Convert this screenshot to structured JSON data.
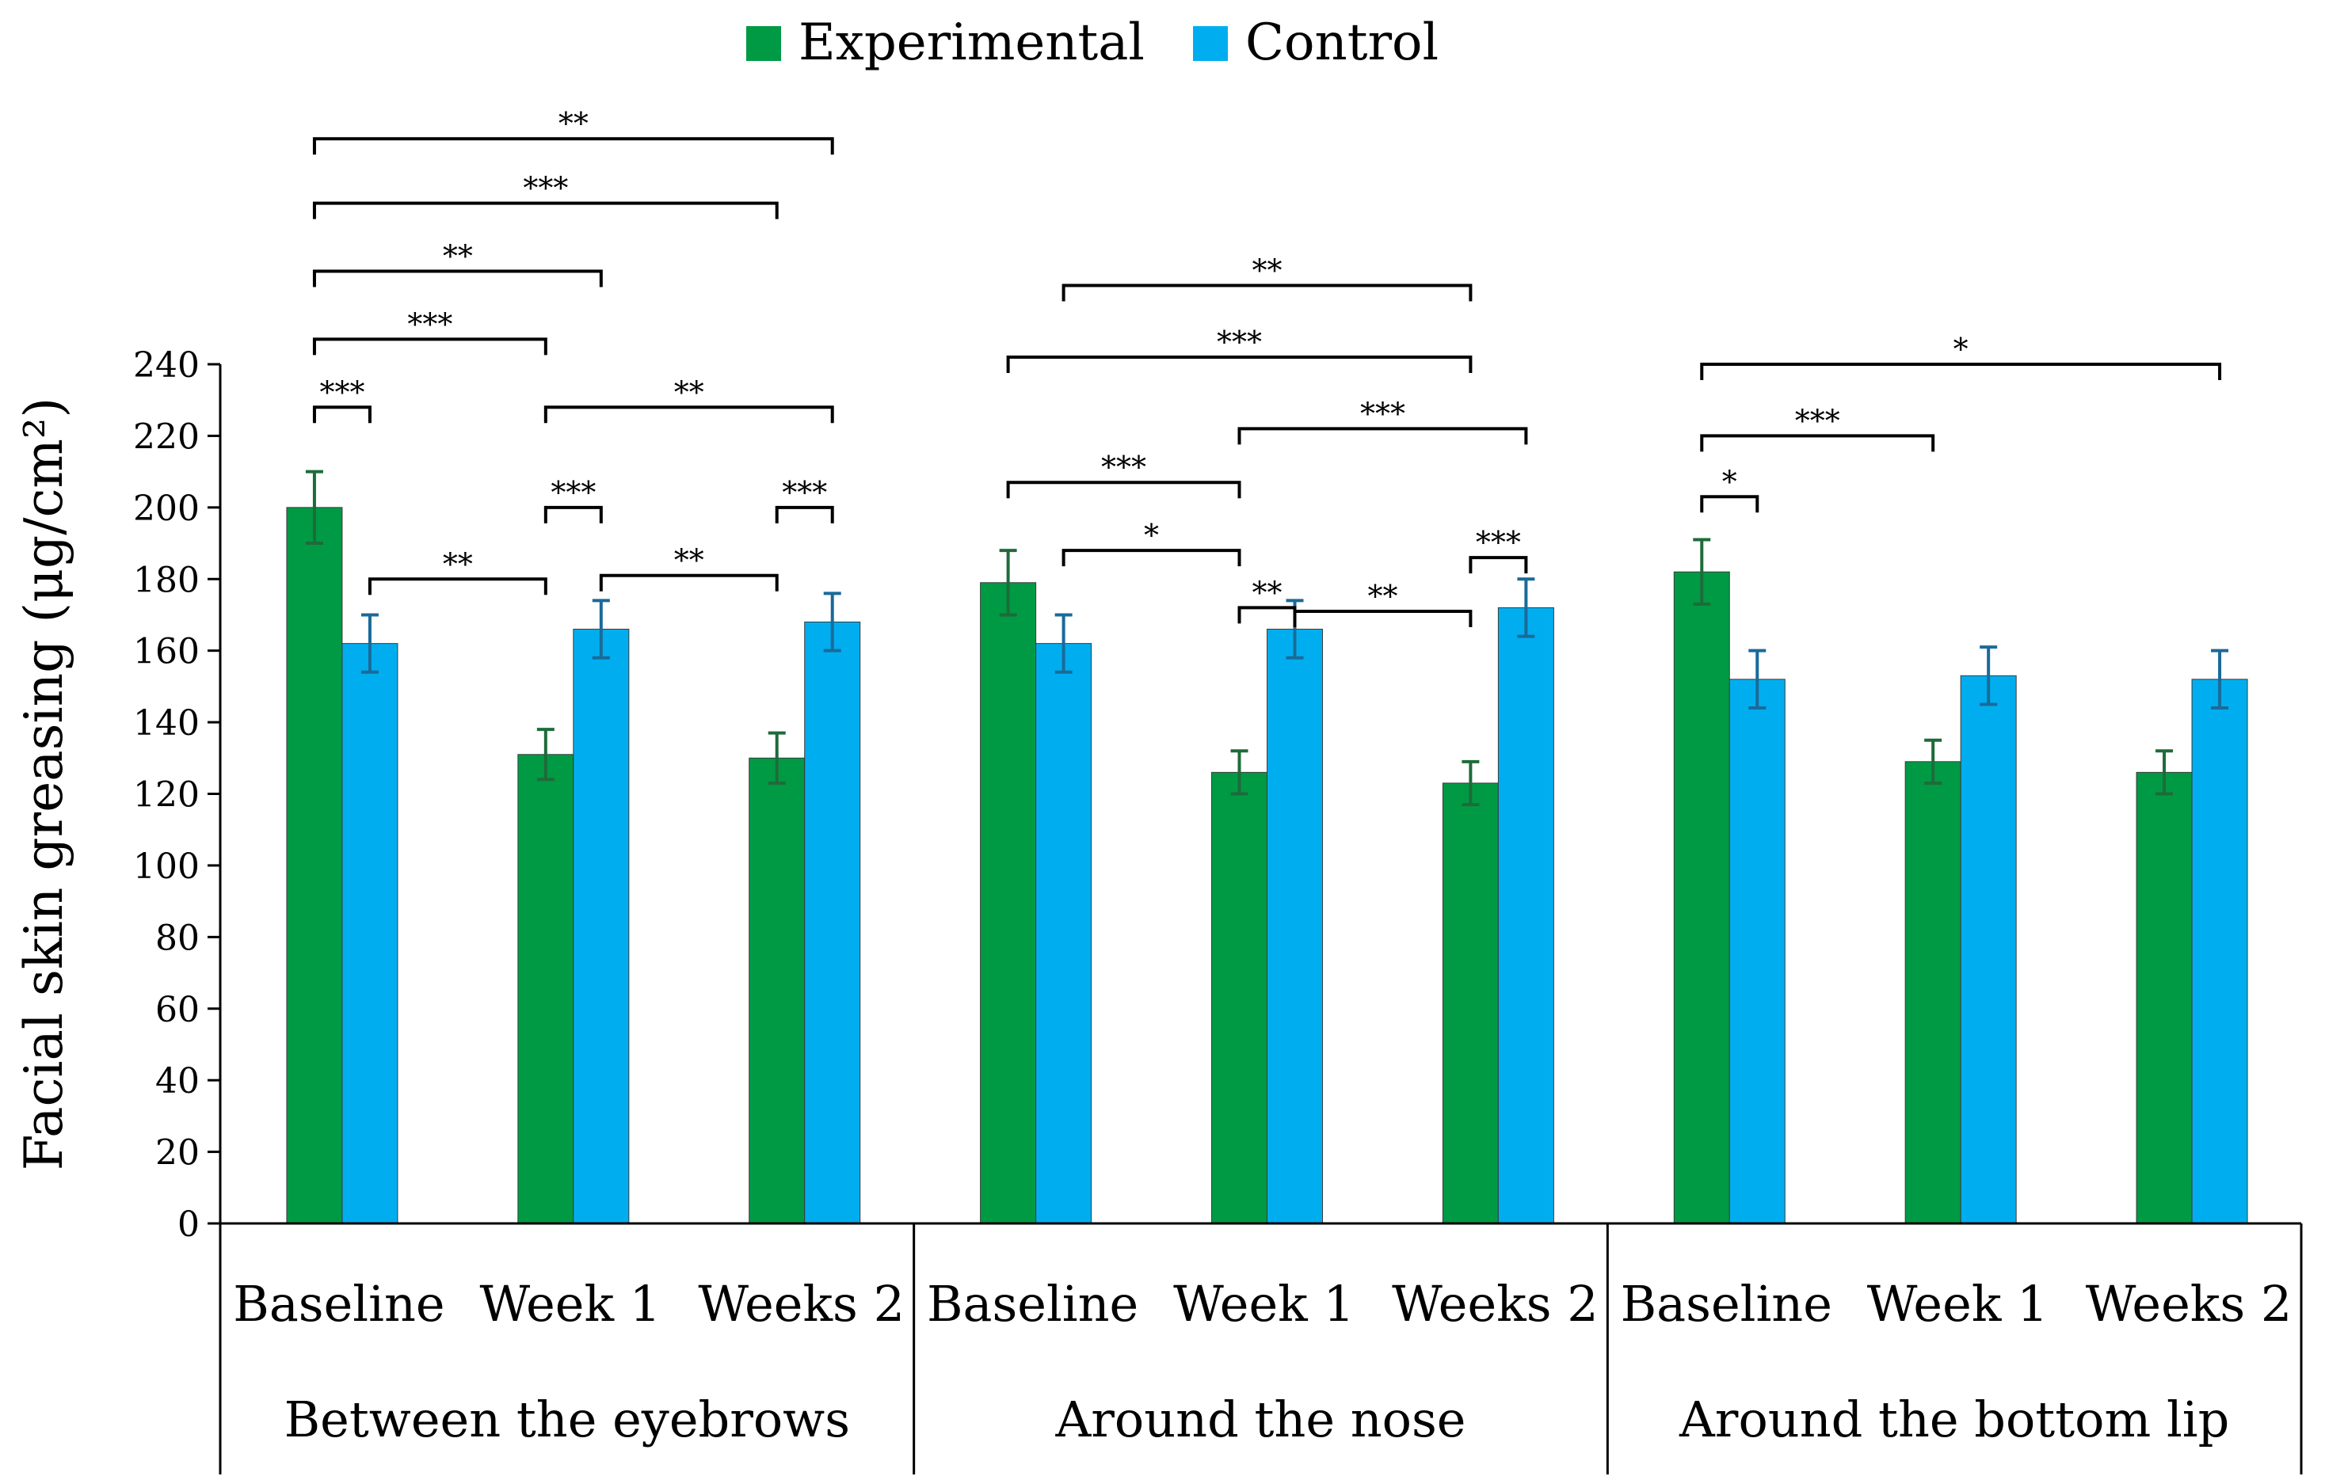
{
  "chart_data": {
    "type": "bar",
    "ylabel": "Facial skin greasing (μg/cm²)",
    "ylim": [
      0,
      240
    ],
    "ytick_step": 20,
    "groups": [
      {
        "name": "Between the eyebrows",
        "categories": [
          "Baseline",
          "Week 1",
          "Weeks 2"
        ]
      },
      {
        "name": "Around the nose",
        "categories": [
          "Baseline",
          "Week 1",
          "Weeks 2"
        ]
      },
      {
        "name": "Around the bottom lip",
        "categories": [
          "Baseline",
          "Week 1",
          "Weeks 2"
        ]
      }
    ],
    "series": [
      {
        "name": "Experimental",
        "color": "#009a44",
        "error_color": "#1e6b3a",
        "values": [
          200,
          131,
          130,
          179,
          126,
          123,
          182,
          129,
          126
        ],
        "errors": [
          10,
          7,
          7,
          9,
          6,
          6,
          9,
          6,
          6
        ]
      },
      {
        "name": "Control",
        "color": "#00aeef",
        "error_color": "#1a6a9a",
        "values": [
          162,
          166,
          168,
          162,
          166,
          172,
          152,
          153,
          152
        ],
        "errors": [
          8,
          8,
          8,
          8,
          8,
          8,
          8,
          8,
          8
        ]
      }
    ],
    "significance": [
      {
        "from": [
          0,
          0
        ],
        "to": [
          0,
          1
        ],
        "y": 228,
        "label": "***"
      },
      {
        "from": [
          0,
          0
        ],
        "to": [
          1,
          0
        ],
        "y": 247,
        "label": "***"
      },
      {
        "from": [
          0,
          0
        ],
        "to": [
          1,
          1
        ],
        "y": 266,
        "label": "**"
      },
      {
        "from": [
          0,
          0
        ],
        "to": [
          2,
          0
        ],
        "y": 285,
        "label": "***"
      },
      {
        "from": [
          0,
          0
        ],
        "to": [
          2,
          1
        ],
        "y": 303,
        "label": "**"
      },
      {
        "from": [
          0,
          1
        ],
        "to": [
          1,
          0
        ],
        "y": 180,
        "label": "**"
      },
      {
        "from": [
          1,
          0
        ],
        "to": [
          1,
          1
        ],
        "y": 200,
        "label": "***"
      },
      {
        "from": [
          1,
          0
        ],
        "to": [
          2,
          1
        ],
        "y": 228,
        "label": "**"
      },
      {
        "from": [
          1,
          1
        ],
        "to": [
          2,
          0
        ],
        "y": 181,
        "label": "**"
      },
      {
        "from": [
          2,
          0
        ],
        "to": [
          2,
          1
        ],
        "y": 200,
        "label": "***"
      },
      {
        "from": [
          3,
          0
        ],
        "to": [
          4,
          0
        ],
        "y": 207,
        "label": "***"
      },
      {
        "from": [
          3,
          0
        ],
        "to": [
          5,
          0
        ],
        "y": 242,
        "label": "***"
      },
      {
        "from": [
          3,
          1
        ],
        "to": [
          4,
          0
        ],
        "y": 188,
        "label": "*"
      },
      {
        "from": [
          3,
          1
        ],
        "to": [
          5,
          0
        ],
        "y": 262,
        "label": "**"
      },
      {
        "from": [
          4,
          0
        ],
        "to": [
          4,
          1
        ],
        "y": 172,
        "label": "**"
      },
      {
        "from": [
          4,
          0
        ],
        "to": [
          5,
          1
        ],
        "y": 222,
        "label": "***"
      },
      {
        "from": [
          4,
          1
        ],
        "to": [
          5,
          0
        ],
        "y": 171,
        "label": "**"
      },
      {
        "from": [
          5,
          0
        ],
        "to": [
          5,
          1
        ],
        "y": 186,
        "label": "***"
      },
      {
        "from": [
          6,
          0
        ],
        "to": [
          6,
          1
        ],
        "y": 203,
        "label": "*"
      },
      {
        "from": [
          6,
          0
        ],
        "to": [
          7,
          0
        ],
        "y": 220,
        "label": "***"
      },
      {
        "from": [
          6,
          0
        ],
        "to": [
          8,
          1
        ],
        "y": 240,
        "label": "*"
      }
    ]
  }
}
